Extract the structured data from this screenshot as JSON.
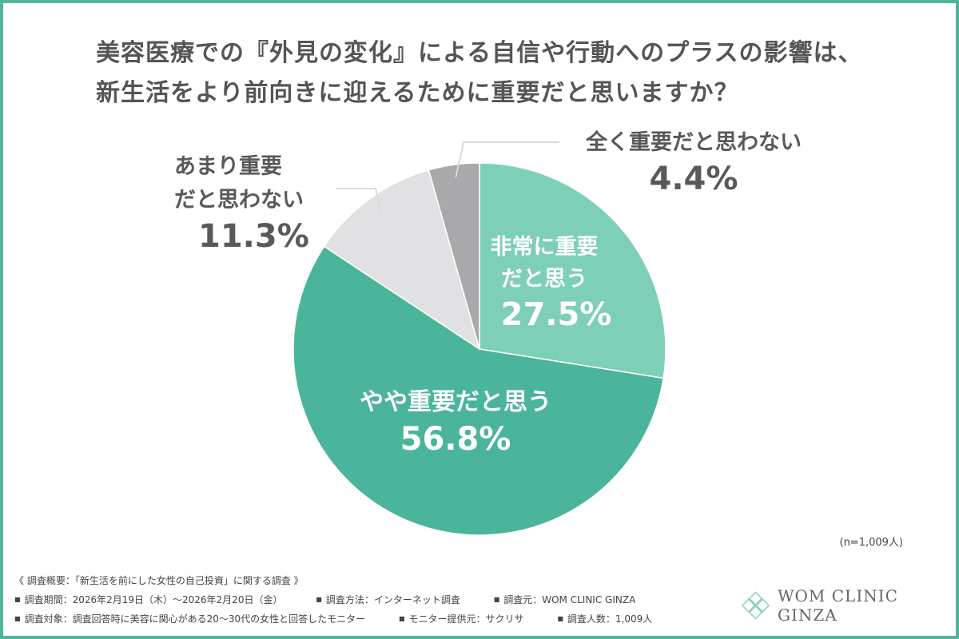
{
  "title_line1": "美容医療での『外見の変化』による自信や行動へのプラスの影響は、",
  "title_line2": "新生活をより前向きに迎えるために重要だと思いますか？",
  "chart_data": {
    "type": "pie",
    "title": "美容医療での『外見の変化』による自信や行動へのプラスの影響は、新生活をより前向きに迎えるために重要だと思いますか？",
    "start": "12 o'clock, clockwise",
    "slices": [
      {
        "label_lines": [
          "非常に重要",
          "だと思う"
        ],
        "label": "非常に重要だと思う",
        "value": 27.5,
        "value_label": "27.5%",
        "color": "#7ecfb8",
        "label_position": "inside"
      },
      {
        "label_lines": [
          "やや重要だと思う"
        ],
        "label": "やや重要だと思う",
        "value": 56.8,
        "value_label": "56.8%",
        "color": "#4ab59b",
        "label_position": "inside"
      },
      {
        "label_lines": [
          "あまり重要",
          "だと思わない"
        ],
        "label": "あまり重要だと思わない",
        "value": 11.3,
        "value_label": "11.3%",
        "color": "#e1e1e4",
        "label_position": "outside-left"
      },
      {
        "label_lines": [
          "全く重要だと思わない"
        ],
        "label": "全く重要だと思わない",
        "value": 4.4,
        "value_label": "4.4%",
        "color": "#a9a9ac",
        "label_position": "outside-top"
      }
    ]
  },
  "sample_note": "(n=1,009人)",
  "footer": {
    "summary": "《 調査概要：「新生活を前にした女性の自己投資」に関する調査 》",
    "period": "調査期間：2026年2月19日（木）〜2026年2月20日（金）",
    "method": "調査方法：インターネット調査",
    "source": "調査元：WOM CLINIC GINZA",
    "target": "調査対象：調査回答時に美容に関心がある20〜30代の女性と回答したモニター",
    "provider": "モニター提供元：サクリサ",
    "count": "調査人数：1,009人"
  },
  "logo_text": "WOM CLINIC GINZA",
  "colors": {
    "border": "#4fb59c",
    "logo_mark": "#8fcfbf"
  }
}
